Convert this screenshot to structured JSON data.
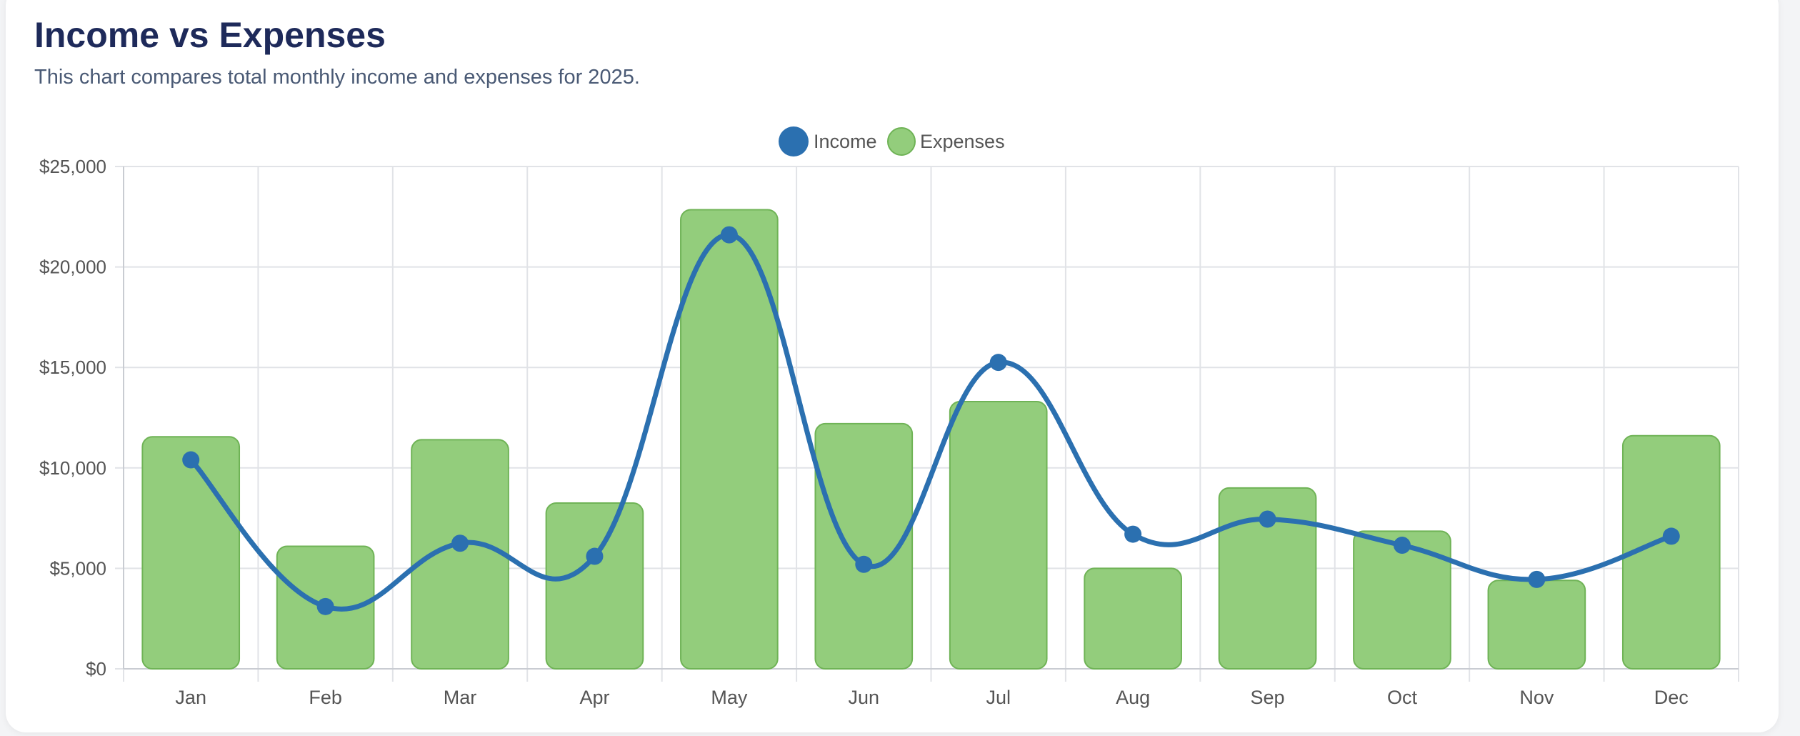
{
  "header": {
    "title": "Income vs Expenses",
    "subtitle": "This chart compares total monthly income and expenses for 2025."
  },
  "colors": {
    "income": "#2b70b0",
    "expenses_fill": "#93cd7c",
    "expenses_stroke": "#6fb356",
    "grid": "#e1e3e7",
    "axis_text": "#555555"
  },
  "chart_data": {
    "type": "bar",
    "title": "Income vs Expenses",
    "subtitle": "This chart compares total monthly income and expenses for 2025.",
    "categories": [
      "Jan",
      "Feb",
      "Mar",
      "Apr",
      "May",
      "Jun",
      "Jul",
      "Aug",
      "Sep",
      "Oct",
      "Nov",
      "Dec"
    ],
    "series": [
      {
        "name": "Income",
        "type": "line",
        "smooth": true,
        "values": [
          10400,
          3100,
          6250,
          5600,
          21600,
          5200,
          15250,
          6700,
          7450,
          6150,
          4450,
          6600
        ]
      },
      {
        "name": "Expenses",
        "type": "bar",
        "values": [
          11550,
          6100,
          11400,
          8250,
          22850,
          12200,
          13300,
          5000,
          9000,
          6850,
          4400,
          11600
        ]
      }
    ],
    "ylim": [
      0,
      25000
    ],
    "yticks": [
      {
        "value": 0,
        "label": "$0"
      },
      {
        "value": 5000,
        "label": "$5,000"
      },
      {
        "value": 10000,
        "label": "$10,000"
      },
      {
        "value": 15000,
        "label": "$15,000"
      },
      {
        "value": 20000,
        "label": "$20,000"
      },
      {
        "value": 25000,
        "label": "$25,000"
      }
    ],
    "xlabel": "",
    "ylabel": "",
    "grid": true,
    "legend_position": "top-center"
  }
}
